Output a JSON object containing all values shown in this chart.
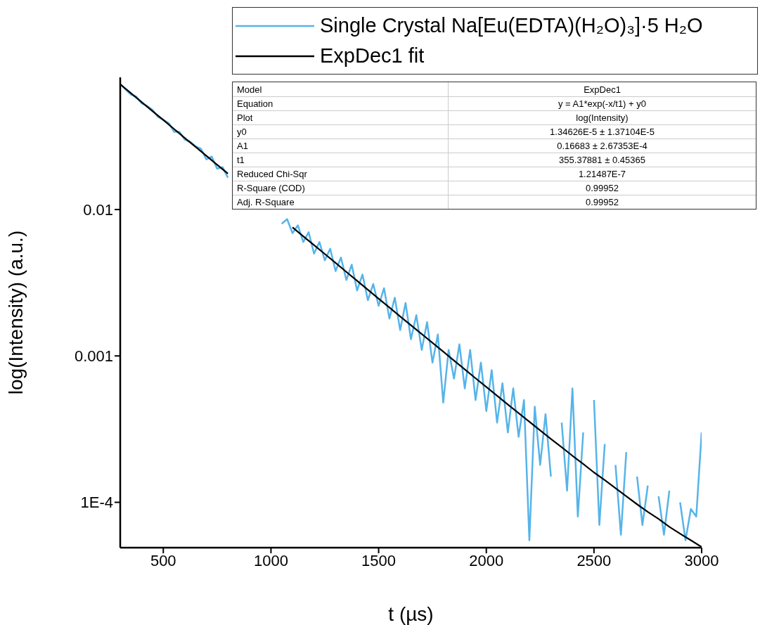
{
  "chart_data": {
    "type": "line",
    "xlabel": "t (µs)",
    "ylabel": "log(Intensity) (a.u.)",
    "log": "y",
    "legend": "top right",
    "grid": false,
    "marker": "none",
    "line_style": "solid",
    "xlim": [
      300,
      3000
    ],
    "xticks": [
      500,
      1000,
      1500,
      2000,
      2500,
      3000
    ],
    "ylim": [
      4.9e-05,
      0.08
    ],
    "yticks": [
      {
        "value": 0.0001,
        "label": "1E-4"
      },
      0.001,
      0.01
    ],
    "series": [
      {
        "name": "Single Crystal Na[Eu(EDTA)(H₂O)₃]·5 H₂O",
        "color": "#56b4e9",
        "x": [
          300,
          325,
          350,
          375,
          400,
          425,
          450,
          475,
          500,
          525,
          550,
          575,
          600,
          625,
          650,
          675,
          700,
          725,
          750,
          775,
          800,
          825,
          850,
          875,
          900,
          925,
          950,
          975,
          1000,
          1025,
          1050,
          1075,
          1100,
          1125,
          1150,
          1175,
          1200,
          1225,
          1250,
          1275,
          1300,
          1325,
          1350,
          1375,
          1400,
          1425,
          1450,
          1475,
          1500,
          1525,
          1550,
          1575,
          1600,
          1625,
          1650,
          1675,
          1700,
          1725,
          1750,
          1775,
          1800,
          1825,
          1850,
          1875,
          1900,
          1925,
          1950,
          1975,
          2000,
          2025,
          2050,
          2075,
          2100,
          2125,
          2150,
          2175,
          2200,
          2225,
          2250,
          2275,
          2300,
          2325,
          2350,
          2375,
          2400,
          2425,
          2450,
          2475,
          2500,
          2525,
          2550,
          2575,
          2600,
          2625,
          2650,
          2675,
          2700,
          2725,
          2750,
          2775,
          2800,
          2825,
          2850,
          2875,
          2900,
          2925,
          2950,
          2975,
          3000
        ],
        "values": [
          0.072,
          0.066,
          0.061,
          0.059,
          0.053,
          0.051,
          0.048,
          0.043,
          0.041,
          0.039,
          0.034,
          0.034,
          0.03,
          0.029,
          0.027,
          0.026,
          0.022,
          0.023,
          0.019,
          0.0195,
          0.0165,
          null,
          null,
          null,
          null,
          null,
          null,
          null,
          null,
          null,
          0.008,
          0.0086,
          0.0069,
          0.0078,
          0.006,
          0.007,
          0.005,
          0.006,
          0.0045,
          0.0054,
          0.0038,
          0.0047,
          0.0033,
          0.0042,
          0.0028,
          0.0036,
          0.0024,
          0.0031,
          0.0022,
          0.0029,
          0.0018,
          0.0025,
          0.0015,
          0.0023,
          0.0013,
          0.0019,
          0.0011,
          0.0017,
          0.0009,
          0.0014,
          0.00048,
          0.0011,
          0.0007,
          0.0012,
          0.0006,
          0.0011,
          0.0005,
          0.0009,
          0.00042,
          0.0008,
          0.00035,
          0.00065,
          0.0003,
          0.0006,
          0.00028,
          0.0005,
          5.5e-05,
          0.00045,
          0.00018,
          0.0004,
          0.00015,
          null,
          0.00035,
          0.00012,
          0.0006,
          8e-05,
          0.0003,
          null,
          0.0005,
          7e-05,
          0.00025,
          null,
          0.00018,
          6e-05,
          0.00022,
          null,
          0.00015,
          7e-05,
          0.00013,
          null,
          0.00011,
          6e-05,
          0.00012,
          null,
          0.0001,
          5.5e-05,
          9e-05,
          8e-05,
          0.0003
        ]
      },
      {
        "name": "ExpDec1 fit",
        "color": "#000000",
        "x": [
          300,
          350,
          400,
          450,
          500,
          550,
          600,
          650,
          700,
          750,
          800,
          850,
          900,
          950,
          1000,
          1050,
          1100,
          1150,
          1200,
          1250,
          1300,
          1350,
          1400,
          1450,
          1500,
          1550,
          1600,
          1650,
          1700,
          1750,
          1800,
          1850,
          1900,
          1950,
          2000,
          2050,
          2100,
          2150,
          2200,
          2250,
          2300,
          2350,
          2400,
          2450,
          2500,
          2550,
          2600,
          2650,
          2700,
          2750,
          2800,
          2850,
          2900,
          2950,
          3000
        ],
        "values": [
          0.0717,
          0.0623,
          0.0541,
          0.047,
          0.0409,
          0.0355,
          0.0308,
          0.0268,
          0.0233,
          0.0202,
          0.0176,
          null,
          null,
          null,
          null,
          null,
          0.00756,
          0.00657,
          0.00571,
          0.00497,
          0.00432,
          0.00375,
          0.00326,
          0.00283,
          0.00246,
          0.00214,
          0.00186,
          0.00162,
          0.00141,
          0.00123,
          0.00107,
          0.00093,
          0.00081,
          0.000704,
          0.000614,
          0.000535,
          0.000466,
          0.000407,
          0.000355,
          0.00031,
          0.000271,
          0.000238,
          0.000208,
          0.000183,
          0.00016,
          0.000142,
          0.000125,
          0.00011,
          9.7e-05,
          8.6e-05,
          7.7e-05,
          6.8e-05,
          6.1e-05,
          5.5e-05,
          4.95e-05
        ]
      }
    ],
    "annotations": [
      "Model",
      "ExpDec1",
      "Equation",
      "y = A1*exp(-x/t1) + y0",
      "Plot",
      "log(Intensity)",
      "y0",
      "1.34626E-5 ± 1.37104E-5",
      "A1",
      "0.16683 ± 2.67353E-4",
      "t1",
      "355.37881 ± 0.45365",
      "Reduced Chi-Sqr",
      "1.21487E-7",
      "R-Square (COD)",
      "0.99952",
      "Adj. R-Square",
      "0.99952"
    ]
  }
}
